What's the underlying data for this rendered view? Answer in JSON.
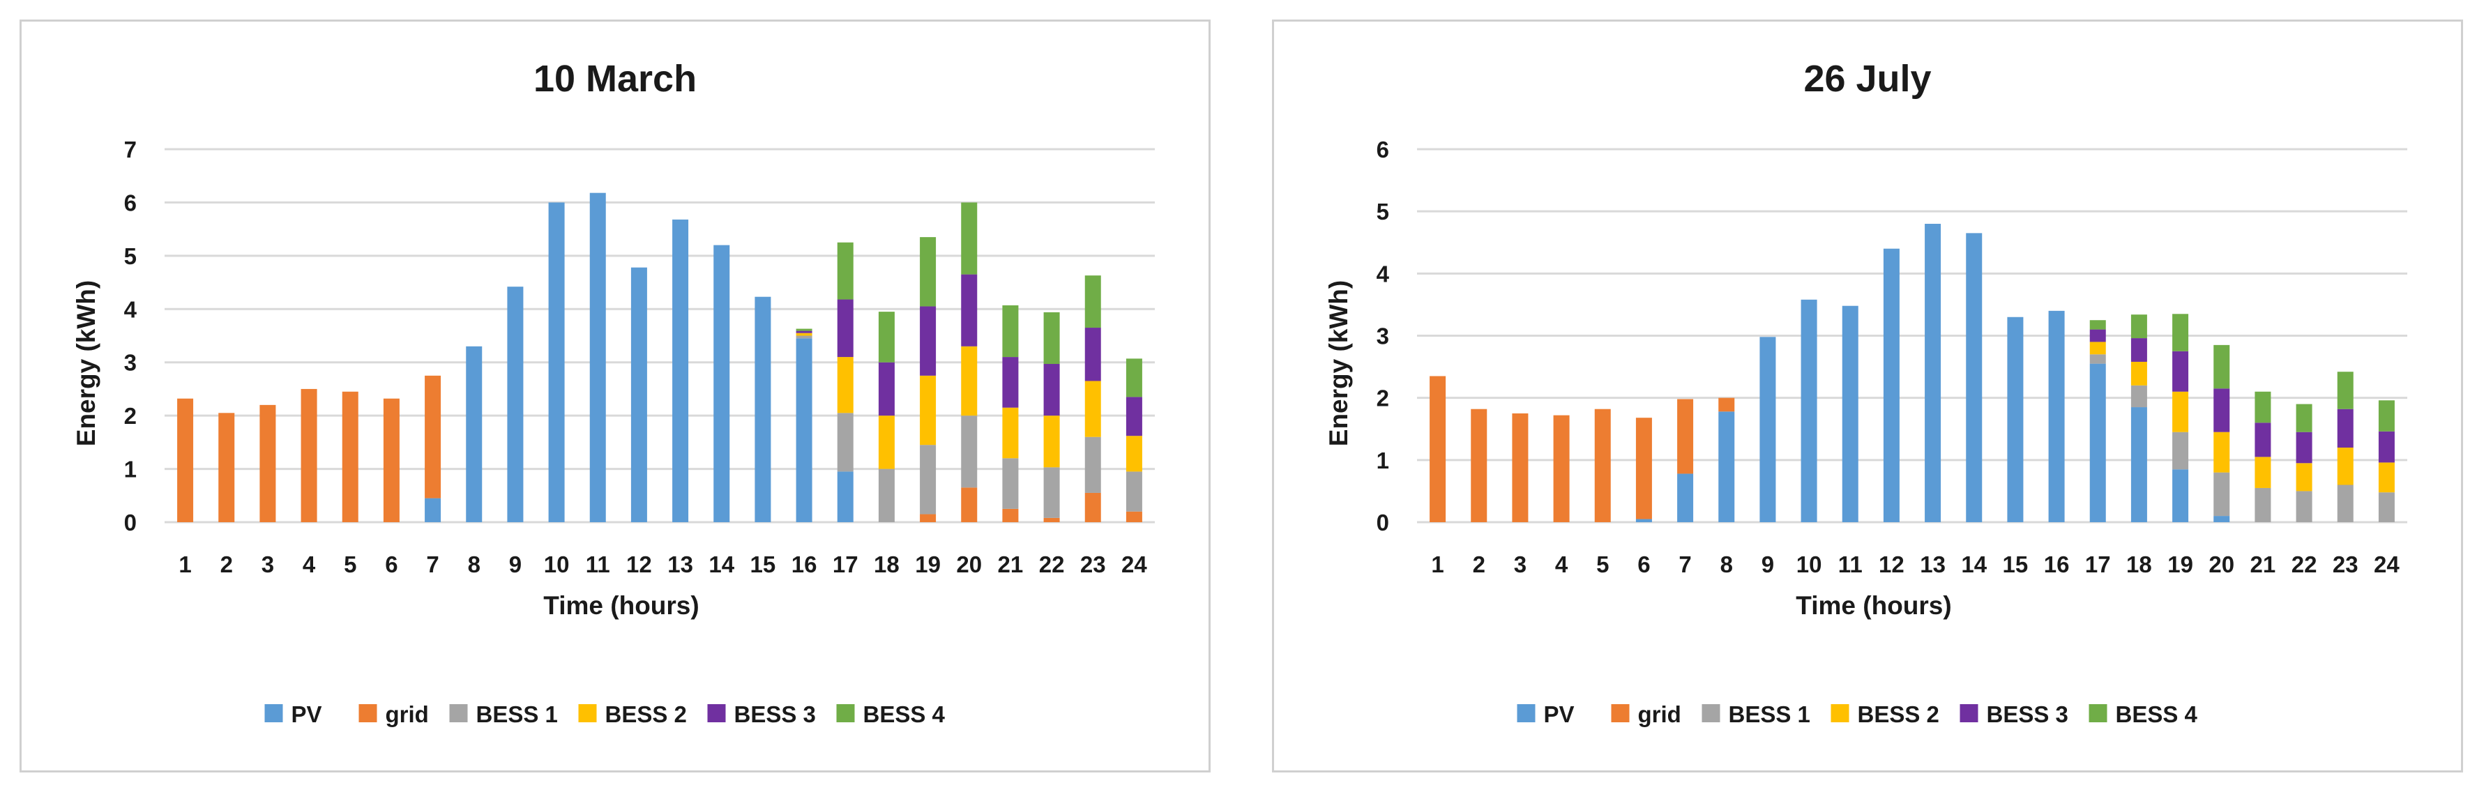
{
  "chart_data": [
    {
      "type": "bar",
      "stacked": true,
      "title": "10 March",
      "xlabel": "Time (hours)",
      "ylabel": "Energy (kWh)",
      "ylim": [
        0,
        7
      ],
      "yticks": [
        0,
        1,
        2,
        3,
        4,
        5,
        6,
        7
      ],
      "grid": true,
      "legend": "bottom",
      "categories": [
        "1",
        "2",
        "3",
        "4",
        "5",
        "6",
        "7",
        "8",
        "9",
        "10",
        "11",
        "12",
        "13",
        "14",
        "15",
        "16",
        "17",
        "18",
        "19",
        "20",
        "21",
        "22",
        "23",
        "24"
      ],
      "series": [
        {
          "name": "PV",
          "color": "#5b9bd5",
          "values": [
            0,
            0,
            0,
            0,
            0,
            0,
            0.45,
            3.3,
            4.42,
            6.0,
            6.18,
            4.78,
            5.68,
            5.2,
            4.23,
            3.45,
            0.95,
            0,
            0,
            0,
            0,
            0,
            0,
            0
          ]
        },
        {
          "name": "grid",
          "color": "#ed7d31",
          "values": [
            2.32,
            2.05,
            2.2,
            2.5,
            2.45,
            2.32,
            2.3,
            0,
            0,
            0,
            0,
            0,
            0,
            0,
            0,
            0,
            0,
            0,
            0.15,
            0.65,
            0.25,
            0.08,
            0.55,
            0.2
          ]
        },
        {
          "name": "BESS 1",
          "color": "#a5a5a5",
          "values": [
            0,
            0,
            0,
            0,
            0,
            0,
            0,
            0,
            0,
            0,
            0,
            0,
            0,
            0,
            0,
            0.05,
            1.1,
            1.0,
            1.3,
            1.35,
            0.95,
            0.95,
            1.05,
            0.75
          ]
        },
        {
          "name": "BESS 2",
          "color": "#ffc000",
          "values": [
            0,
            0,
            0,
            0,
            0,
            0,
            0,
            0,
            0,
            0,
            0,
            0,
            0,
            0,
            0,
            0.05,
            1.05,
            1.0,
            1.3,
            1.3,
            0.95,
            0.97,
            1.05,
            0.67
          ]
        },
        {
          "name": "BESS 3",
          "color": "#7030a0",
          "values": [
            0,
            0,
            0,
            0,
            0,
            0,
            0,
            0,
            0,
            0,
            0,
            0,
            0,
            0,
            0,
            0.04,
            1.08,
            1.0,
            1.3,
            1.35,
            0.95,
            0.97,
            1.0,
            0.73
          ]
        },
        {
          "name": "BESS 4",
          "color": "#70ad47",
          "values": [
            0,
            0,
            0,
            0,
            0,
            0,
            0,
            0,
            0,
            0,
            0,
            0,
            0,
            0,
            0,
            0.04,
            1.07,
            0.95,
            1.3,
            1.35,
            0.97,
            0.97,
            0.98,
            0.72
          ]
        }
      ]
    },
    {
      "type": "bar",
      "stacked": true,
      "title": "26 July",
      "xlabel": "Time (hours)",
      "ylabel": "Energy (kWh)",
      "ylim": [
        0,
        6
      ],
      "yticks": [
        0,
        1,
        2,
        3,
        4,
        5,
        6
      ],
      "grid": true,
      "legend": "bottom",
      "categories": [
        "1",
        "2",
        "3",
        "4",
        "5",
        "6",
        "7",
        "8",
        "9",
        "10",
        "11",
        "12",
        "13",
        "14",
        "15",
        "16",
        "17",
        "18",
        "19",
        "20",
        "21",
        "22",
        "23",
        "24"
      ],
      "series": [
        {
          "name": "PV",
          "color": "#5b9bd5",
          "values": [
            0,
            0,
            0,
            0,
            0,
            0.05,
            0.78,
            1.78,
            2.98,
            3.58,
            3.48,
            4.4,
            4.8,
            4.65,
            3.3,
            3.4,
            2.55,
            1.85,
            0.85,
            0.1,
            0,
            0,
            0,
            0
          ]
        },
        {
          "name": "grid",
          "color": "#ed7d31",
          "values": [
            2.35,
            1.82,
            1.75,
            1.72,
            1.82,
            1.63,
            1.2,
            0.22,
            0,
            0,
            0,
            0,
            0,
            0,
            0,
            0,
            0,
            0,
            0,
            0,
            0,
            0,
            0,
            0
          ]
        },
        {
          "name": "BESS 1",
          "color": "#a5a5a5",
          "values": [
            0,
            0,
            0,
            0,
            0,
            0,
            0,
            0,
            0,
            0,
            0,
            0,
            0,
            0,
            0,
            0,
            0.15,
            0.35,
            0.6,
            0.7,
            0.55,
            0.5,
            0.6,
            0.48
          ]
        },
        {
          "name": "BESS 2",
          "color": "#ffc000",
          "values": [
            0,
            0,
            0,
            0,
            0,
            0,
            0,
            0,
            0,
            0,
            0,
            0,
            0,
            0,
            0,
            0,
            0.2,
            0.38,
            0.65,
            0.65,
            0.5,
            0.45,
            0.6,
            0.48
          ]
        },
        {
          "name": "BESS 3",
          "color": "#7030a0",
          "values": [
            0,
            0,
            0,
            0,
            0,
            0,
            0,
            0,
            0,
            0,
            0,
            0,
            0,
            0,
            0,
            0,
            0.2,
            0.38,
            0.65,
            0.7,
            0.55,
            0.5,
            0.62,
            0.5
          ]
        },
        {
          "name": "BESS 4",
          "color": "#70ad47",
          "values": [
            0,
            0,
            0,
            0,
            0,
            0,
            0,
            0,
            0,
            0,
            0,
            0,
            0,
            0,
            0,
            0,
            0.15,
            0.38,
            0.6,
            0.7,
            0.5,
            0.45,
            0.6,
            0.5
          ]
        }
      ]
    }
  ]
}
